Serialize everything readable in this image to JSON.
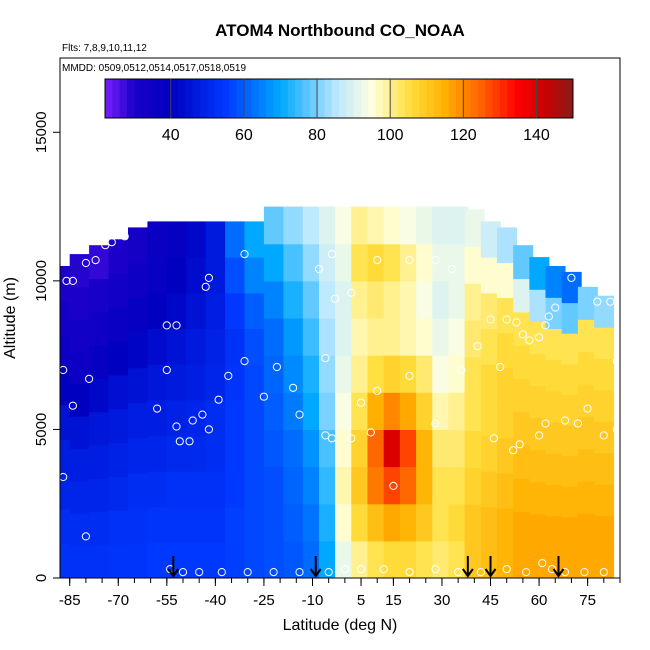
{
  "chart_data": {
    "type": "heatmap",
    "title": "ATOM4 Northbound CO_NOAA",
    "subtitle_flights": "Flts: 7,8,9,10,11,12",
    "subtitle_dates": "MMDD: 0509,0512,0514,0517,0518,0519",
    "xlabel": "Latitude (deg N)",
    "ylabel": "Altitude (m)",
    "xlim": [
      -88,
      85
    ],
    "ylim": [
      0,
      17500
    ],
    "x_ticks": [
      -85,
      -70,
      -55,
      -40,
      -25,
      -10,
      5,
      15,
      30,
      45,
      60,
      75
    ],
    "x_tick_labels": [
      "-85",
      "-70",
      "-55",
      "-40",
      "-25",
      "-10",
      "5",
      "15",
      "30",
      "45",
      "60",
      "75"
    ],
    "y_ticks": [
      0,
      5000,
      10000,
      15000
    ],
    "y_tick_labels": [
      "0",
      "5000",
      "10000",
      "15000"
    ],
    "colorbar": {
      "min": 22,
      "max": 150,
      "ticks": [
        40,
        60,
        80,
        100,
        120,
        140
      ],
      "tick_labels": [
        "40",
        "60",
        "80",
        "100",
        "120",
        "140"
      ],
      "colors": [
        "#7a1fff",
        "#1a00c8",
        "#0000c0",
        "#0038ff",
        "#00a8ff",
        "#b8e6ff",
        "#ffffe0",
        "#ffe040",
        "#ffb000",
        "#ff6000",
        "#ff0000",
        "#cc0000",
        "#8a1a1a"
      ],
      "color_positions": [
        22,
        30,
        40,
        55,
        70,
        85,
        95,
        105,
        115,
        125,
        135,
        142,
        150
      ]
    },
    "field_columns": [
      {
        "lat": -87,
        "bottom": 0,
        "top": 10500,
        "values": [
          53,
          52,
          50,
          48,
          45,
          40,
          35,
          33,
          30
        ]
      },
      {
        "lat": -82,
        "bottom": 0,
        "top": 10900,
        "values": [
          53,
          52,
          50,
          48,
          45,
          40,
          35,
          33,
          30,
          29
        ]
      },
      {
        "lat": -76,
        "bottom": 0,
        "top": 11200,
        "values": [
          53,
          52,
          50,
          48,
          46,
          42,
          38,
          34,
          31,
          28
        ]
      },
      {
        "lat": -70,
        "bottom": 0,
        "top": 11400,
        "values": [
          54,
          53,
          51,
          49,
          47,
          44,
          40,
          36,
          33,
          30
        ]
      },
      {
        "lat": -64,
        "bottom": 0,
        "top": 11800,
        "values": [
          54,
          53,
          52,
          50,
          48,
          45,
          41,
          38,
          35,
          32
        ]
      },
      {
        "lat": -58,
        "bottom": 0,
        "top": 12000,
        "values": [
          55,
          54,
          52,
          50,
          48,
          46,
          43,
          40,
          37,
          36
        ]
      },
      {
        "lat": -52,
        "bottom": 0,
        "top": 12000,
        "values": [
          55,
          54,
          53,
          51,
          49,
          47,
          45,
          42,
          40,
          38
        ]
      },
      {
        "lat": -46,
        "bottom": 0,
        "top": 12000,
        "values": [
          55,
          54,
          53,
          51,
          50,
          48,
          47,
          45,
          43,
          42
        ]
      },
      {
        "lat": -40,
        "bottom": 0,
        "top": 12000,
        "values": [
          55,
          54,
          53,
          52,
          52,
          50,
          49,
          48,
          47,
          47
        ]
      },
      {
        "lat": -34,
        "bottom": 0,
        "top": 12000,
        "values": [
          56,
          56,
          55,
          55,
          55,
          54,
          53,
          55,
          58,
          62
        ]
      },
      {
        "lat": -28,
        "bottom": 0,
        "top": 12000,
        "values": [
          57,
          57,
          57,
          57,
          57,
          57,
          58,
          60,
          65,
          70
        ]
      },
      {
        "lat": -22,
        "bottom": 0,
        "top": 12500,
        "values": [
          58,
          58,
          58,
          59,
          60,
          61,
          62,
          65,
          70,
          78
        ]
      },
      {
        "lat": -16,
        "bottom": 0,
        "top": 12500,
        "values": [
          59,
          60,
          61,
          62,
          64,
          66,
          68,
          72,
          76,
          82
        ]
      },
      {
        "lat": -10,
        "bottom": 0,
        "top": 12500,
        "values": [
          62,
          63,
          65,
          67,
          70,
          72,
          75,
          78,
          82,
          86
        ]
      },
      {
        "lat": -5,
        "bottom": 0,
        "top": 12500,
        "values": [
          70,
          72,
          74,
          76,
          80,
          82,
          84,
          86,
          88,
          90
        ]
      },
      {
        "lat": 0,
        "bottom": 0,
        "top": 12500,
        "values": [
          92,
          96,
          98,
          96,
          94,
          92,
          90,
          90,
          92,
          94
        ]
      },
      {
        "lat": 5,
        "bottom": 0,
        "top": 12500,
        "values": [
          100,
          106,
          110,
          108,
          104,
          100,
          98,
          100,
          104,
          100
        ]
      },
      {
        "lat": 10,
        "bottom": 0,
        "top": 12500,
        "values": [
          104,
          112,
          122,
          124,
          115,
          105,
          100,
          102,
          106,
          98
        ]
      },
      {
        "lat": 15,
        "bottom": 0,
        "top": 12500,
        "values": [
          106,
          116,
          128,
          140,
          120,
          108,
          100,
          100,
          104,
          96
        ]
      },
      {
        "lat": 20,
        "bottom": 0,
        "top": 12500,
        "values": [
          106,
          114,
          124,
          128,
          116,
          106,
          98,
          98,
          100,
          94
        ]
      },
      {
        "lat": 25,
        "bottom": 0,
        "top": 12500,
        "values": [
          104,
          110,
          114,
          114,
          108,
          102,
          96,
          94,
          96,
          92
        ]
      },
      {
        "lat": 30,
        "bottom": 0,
        "top": 12500,
        "values": [
          102,
          104,
          104,
          102,
          98,
          94,
          92,
          90,
          92,
          90
        ]
      },
      {
        "lat": 35,
        "bottom": 0,
        "top": 12500,
        "values": [
          104,
          106,
          104,
          102,
          100,
          96,
          94,
          92,
          92,
          90
        ]
      },
      {
        "lat": 40,
        "bottom": 0,
        "top": 12400,
        "values": [
          110,
          110,
          108,
          106,
          104,
          104,
          102,
          100,
          96,
          92
        ]
      },
      {
        "lat": 45,
        "bottom": 0,
        "top": 12000,
        "values": [
          112,
          112,
          110,
          108,
          106,
          106,
          104,
          102,
          96,
          88
        ]
      },
      {
        "lat": 50,
        "bottom": 0,
        "top": 11800,
        "values": [
          114,
          114,
          112,
          110,
          108,
          108,
          106,
          104,
          96,
          84
        ]
      },
      {
        "lat": 55,
        "bottom": 0,
        "top": 11200,
        "values": [
          116,
          116,
          114,
          112,
          110,
          108,
          106,
          104,
          90,
          78
        ]
      },
      {
        "lat": 60,
        "bottom": 0,
        "top": 10800,
        "values": [
          116,
          116,
          114,
          112,
          110,
          108,
          106,
          104,
          84,
          70
        ]
      },
      {
        "lat": 65,
        "bottom": 0,
        "top": 10500,
        "values": [
          116,
          116,
          114,
          112,
          110,
          108,
          106,
          104,
          80,
          65
        ]
      },
      {
        "lat": 70,
        "bottom": 0,
        "top": 10300,
        "values": [
          116,
          116,
          114,
          112,
          110,
          108,
          106,
          104,
          78,
          62
        ]
      },
      {
        "lat": 75,
        "bottom": 0,
        "top": 9800,
        "values": [
          116,
          116,
          114,
          112,
          110,
          108,
          106,
          104,
          80
        ]
      },
      {
        "lat": 80,
        "bottom": 0,
        "top": 9500,
        "values": [
          116,
          116,
          114,
          112,
          110,
          108,
          106,
          104,
          82
        ]
      }
    ],
    "arrow_latitudes": [
      -53,
      -9,
      38,
      45,
      66
    ],
    "sample_points": [
      {
        "x": -86,
        "y": 10000
      },
      {
        "x": -84,
        "y": 10000
      },
      {
        "x": -80,
        "y": 10600
      },
      {
        "x": -77,
        "y": 10700
      },
      {
        "x": -74,
        "y": 11200
      },
      {
        "x": -72,
        "y": 11300
      },
      {
        "x": -68,
        "y": 11500
      },
      {
        "x": -55,
        "y": 8500
      },
      {
        "x": -52,
        "y": 8500
      },
      {
        "x": -43,
        "y": 9800
      },
      {
        "x": -42,
        "y": 10100
      },
      {
        "x": -31,
        "y": 10900
      },
      {
        "x": -87,
        "y": 7000
      },
      {
        "x": -79,
        "y": 6700
      },
      {
        "x": -84,
        "y": 5800
      },
      {
        "x": -55,
        "y": 7000
      },
      {
        "x": -36,
        "y": 6800
      },
      {
        "x": -31,
        "y": 7300
      },
      {
        "x": -25,
        "y": 6100
      },
      {
        "x": -21,
        "y": 7100
      },
      {
        "x": -16,
        "y": 6400
      },
      {
        "x": -39,
        "y": 6000
      },
      {
        "x": -44,
        "y": 5500
      },
      {
        "x": -47,
        "y": 5300
      },
      {
        "x": -42,
        "y": 5000
      },
      {
        "x": -51,
        "y": 4600
      },
      {
        "x": -48,
        "y": 4600
      },
      {
        "x": -52,
        "y": 5100
      },
      {
        "x": -58,
        "y": 5700
      },
      {
        "x": -14,
        "y": 5500
      },
      {
        "x": -6,
        "y": 7400
      },
      {
        "x": -3,
        "y": 9400
      },
      {
        "x": -8,
        "y": 10400
      },
      {
        "x": -4,
        "y": 10900
      },
      {
        "x": 2,
        "y": 9600
      },
      {
        "x": 10,
        "y": 10700
      },
      {
        "x": 20,
        "y": 10700
      },
      {
        "x": 28,
        "y": 10700
      },
      {
        "x": 33,
        "y": 10400
      },
      {
        "x": 45,
        "y": 8700
      },
      {
        "x": 50,
        "y": 8700
      },
      {
        "x": 53,
        "y": 8600
      },
      {
        "x": 55,
        "y": 8200
      },
      {
        "x": 57,
        "y": 8000
      },
      {
        "x": 60,
        "y": 8100
      },
      {
        "x": 62,
        "y": 8500
      },
      {
        "x": 63,
        "y": 8800
      },
      {
        "x": 65,
        "y": 9100
      },
      {
        "x": 70,
        "y": 10100
      },
      {
        "x": 73,
        "y": 10700
      },
      {
        "x": 75,
        "y": 10900
      },
      {
        "x": 78,
        "y": 9300
      },
      {
        "x": 82,
        "y": 9300
      },
      {
        "x": 84,
        "y": 7300
      },
      {
        "x": 41,
        "y": 7800
      },
      {
        "x": 48,
        "y": 7100
      },
      {
        "x": 36,
        "y": 7000
      },
      {
        "x": 20,
        "y": 6800
      },
      {
        "x": 10,
        "y": 6300
      },
      {
        "x": 5,
        "y": 5900
      },
      {
        "x": -6,
        "y": 4800
      },
      {
        "x": -4,
        "y": 4700
      },
      {
        "x": 2,
        "y": 4700
      },
      {
        "x": 8,
        "y": 4900
      },
      {
        "x": 28,
        "y": 5200
      },
      {
        "x": 46,
        "y": 4700
      },
      {
        "x": 52,
        "y": 4300
      },
      {
        "x": 54,
        "y": 4500
      },
      {
        "x": 60,
        "y": 4800
      },
      {
        "x": 62,
        "y": 5200
      },
      {
        "x": 68,
        "y": 5300
      },
      {
        "x": 72,
        "y": 5200
      },
      {
        "x": 75,
        "y": 5700
      },
      {
        "x": 80,
        "y": 4800
      },
      {
        "x": 84,
        "y": 5000
      },
      {
        "x": 15,
        "y": 3100
      },
      {
        "x": -87,
        "y": 3400
      },
      {
        "x": -80,
        "y": 1400
      },
      {
        "x": -54,
        "y": 300
      },
      {
        "x": -50,
        "y": 200
      },
      {
        "x": -45,
        "y": 200
      },
      {
        "x": -38,
        "y": 200
      },
      {
        "x": -30,
        "y": 200
      },
      {
        "x": -22,
        "y": 200
      },
      {
        "x": -14,
        "y": 200
      },
      {
        "x": -5,
        "y": 200
      },
      {
        "x": 0,
        "y": 300
      },
      {
        "x": 5,
        "y": 300
      },
      {
        "x": 12,
        "y": 300
      },
      {
        "x": 20,
        "y": 200
      },
      {
        "x": 28,
        "y": 300
      },
      {
        "x": 35,
        "y": 200
      },
      {
        "x": 42,
        "y": 200
      },
      {
        "x": 50,
        "y": 300
      },
      {
        "x": 56,
        "y": 200
      },
      {
        "x": 61,
        "y": 500
      },
      {
        "x": 64,
        "y": 300
      },
      {
        "x": 68,
        "y": 200
      },
      {
        "x": 74,
        "y": 200
      },
      {
        "x": 80,
        "y": 200
      }
    ]
  }
}
